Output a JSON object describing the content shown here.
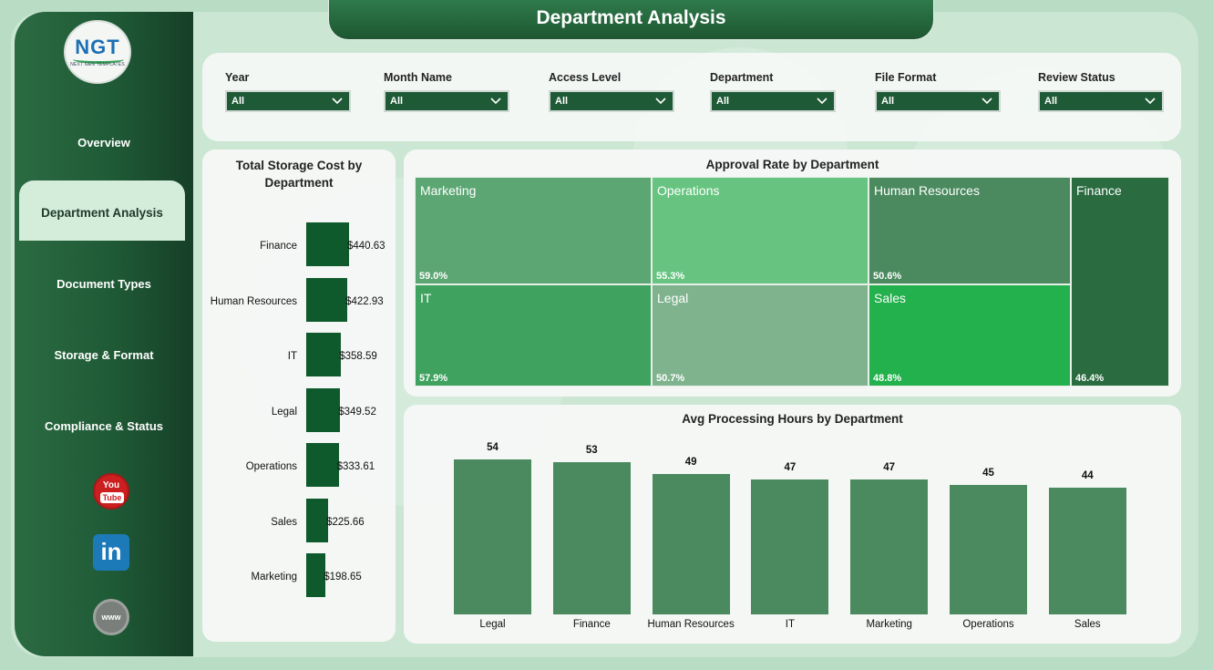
{
  "app": {
    "title": "Department Analysis",
    "logo_text": "NGT",
    "logo_subtext": "NEXT GEN TEMPLATES"
  },
  "sidebar": {
    "items": [
      {
        "label": "Overview",
        "active": false
      },
      {
        "label": "Department Analysis",
        "active": true
      },
      {
        "label": "Document Types",
        "active": false
      },
      {
        "label": "Storage & Format",
        "active": false
      },
      {
        "label": "Compliance & Status",
        "active": false
      }
    ],
    "social": [
      {
        "name": "youtube-icon",
        "label_top": "You",
        "label_bottom": "Tube"
      },
      {
        "name": "linkedin-icon",
        "label": "in"
      },
      {
        "name": "website-icon",
        "label": "www"
      }
    ]
  },
  "filters": [
    {
      "label": "Year",
      "value": "All"
    },
    {
      "label": "Month Name",
      "value": "All"
    },
    {
      "label": "Access Level",
      "value": "All"
    },
    {
      "label": "Department",
      "value": "All"
    },
    {
      "label": "File Format",
      "value": "All"
    },
    {
      "label": "Review Status",
      "value": "All"
    }
  ],
  "colors": {
    "sidebar_dark": "#163f27",
    "accent_green": "#1f5a36",
    "bar_dark": "#0e5a2c",
    "bar_mid": "#4a8a5e",
    "background": "#b8dcc4"
  },
  "chart_data": [
    {
      "type": "bar",
      "orientation": "horizontal",
      "title": "Total Storage Cost by Department",
      "categories": [
        "Finance",
        "Human Resources",
        "IT",
        "Legal",
        "Operations",
        "Sales",
        "Marketing"
      ],
      "values": [
        440.63,
        422.93,
        358.59,
        349.52,
        333.61,
        225.66,
        198.65
      ],
      "value_labels": [
        "$440.63",
        "$422.93",
        "$358.59",
        "$349.52",
        "$333.61",
        "$225.66",
        "$198.65"
      ],
      "color": "#0e5a2c"
    },
    {
      "type": "heatmap",
      "subtype": "treemap",
      "title": "Approval Rate by Department",
      "items": [
        {
          "name": "Marketing",
          "label": "59.0%",
          "value": 59.0,
          "color": "#5ca673"
        },
        {
          "name": "Operations",
          "label": "55.3%",
          "value": 55.3,
          "color": "#66c480"
        },
        {
          "name": "Human Resources",
          "label": "50.6%",
          "value": 50.6,
          "color": "#4a8a5e"
        },
        {
          "name": "Finance",
          "label": "46.4%",
          "value": 46.4,
          "color": "#2a6b40"
        },
        {
          "name": "IT",
          "label": "57.9%",
          "value": 57.9,
          "color": "#3fa25e"
        },
        {
          "name": "Legal",
          "label": "50.7%",
          "value": 50.7,
          "color": "#7fb38e"
        },
        {
          "name": "Sales",
          "label": "48.8%",
          "value": 48.8,
          "color": "#22b14c"
        }
      ]
    },
    {
      "type": "bar",
      "orientation": "vertical",
      "title": "Avg Processing Hours by Department",
      "categories": [
        "Legal",
        "Finance",
        "Human Resources",
        "IT",
        "Marketing",
        "Operations",
        "Sales"
      ],
      "values": [
        54,
        53,
        49,
        47,
        47,
        45,
        44
      ],
      "color": "#4a8a5e"
    }
  ]
}
